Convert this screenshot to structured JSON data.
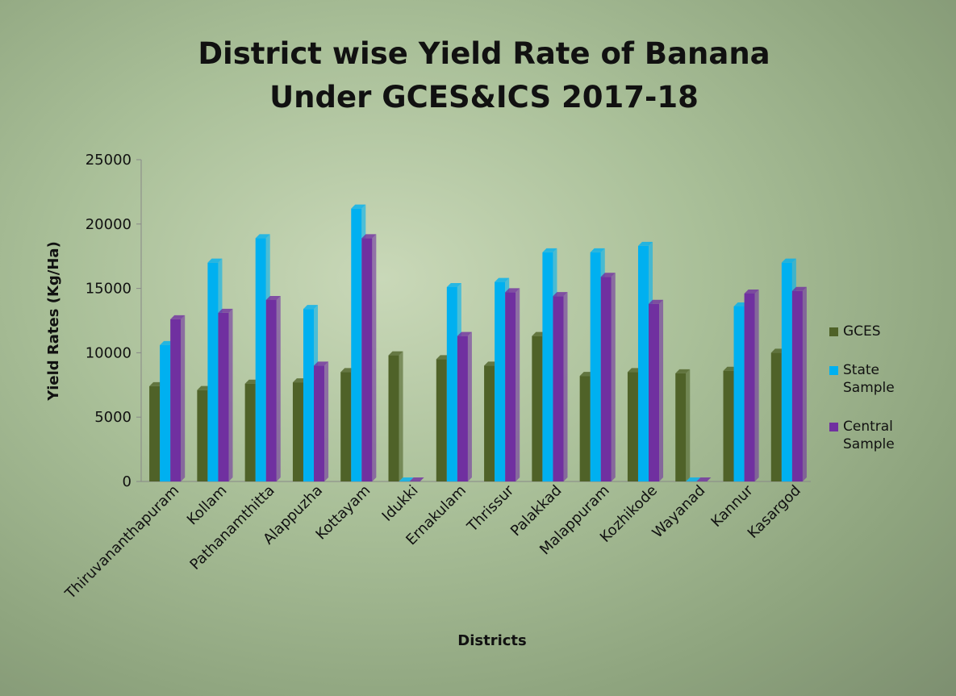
{
  "chart_data": {
    "type": "bar",
    "title": "District wise Yield Rate of Banana Under GCES&ICS 2017-18",
    "x_label": "Districts",
    "y_label": "Yield Rates (Kg/Ha)",
    "categories": [
      "Thiruvananthapuram",
      "Kollam",
      "Pathanamthitta",
      "Alappuzha",
      "Kottayam",
      "Idukki",
      "Ernakulam",
      "Thrissur",
      "Palakkad",
      "Malappuram",
      "Kozhikode",
      "Wayanad",
      "Kannur",
      "Kasargod"
    ],
    "series": [
      {
        "name": "GCES",
        "color": "#4f6228",
        "values": [
          7400,
          7100,
          7600,
          7700,
          8500,
          9800,
          9500,
          9000,
          11300,
          8200,
          8500,
          8400,
          8600,
          10000
        ]
      },
      {
        "name": "State Sample",
        "color": "#00b0f0",
        "values": [
          10600,
          17000,
          18900,
          13400,
          21200,
          0,
          15100,
          15500,
          17800,
          17800,
          18300,
          0,
          13600,
          17000
        ]
      },
      {
        "name": "Central Sample",
        "color": "#7030a0",
        "values": [
          12600,
          13100,
          14100,
          9000,
          18900,
          0,
          11300,
          14700,
          14400,
          15900,
          13800,
          0,
          14600,
          14800
        ]
      }
    ],
    "ylim": [
      0,
      25000
    ],
    "yticks": [
      0,
      5000,
      10000,
      15000,
      20000,
      25000
    ],
    "legend": "right"
  }
}
